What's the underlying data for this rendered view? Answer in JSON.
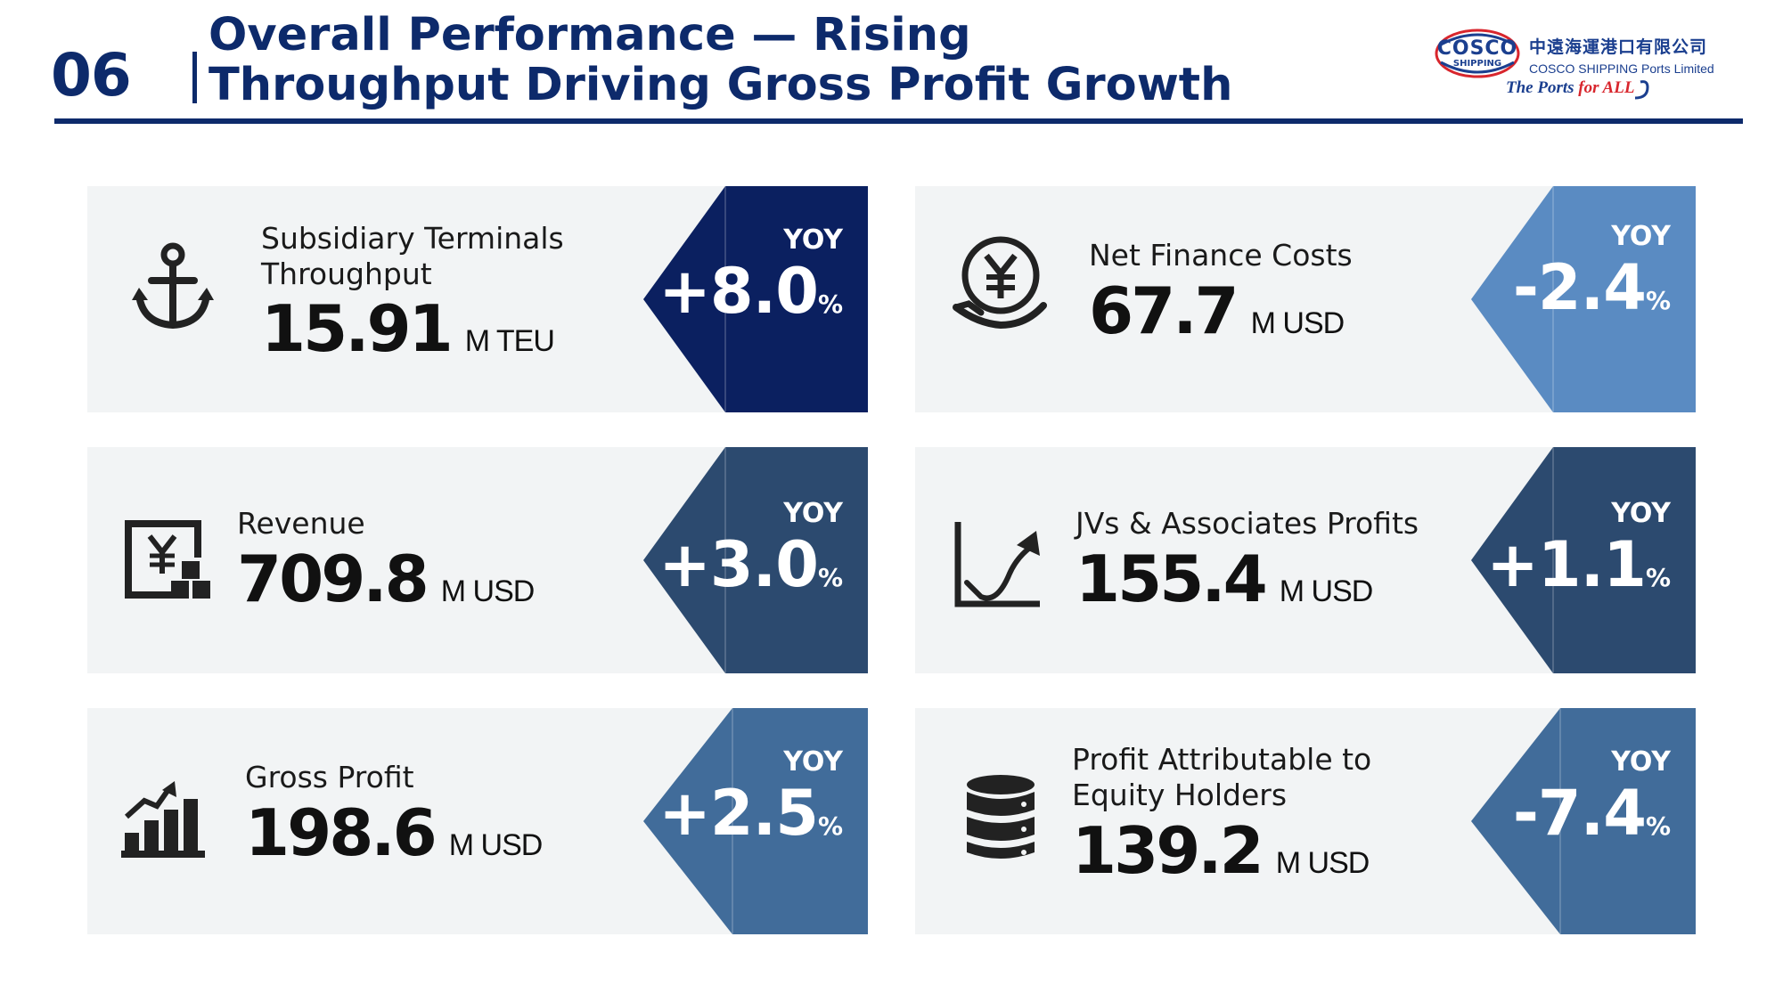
{
  "header": {
    "slide_number": "06",
    "title_line1": "Overall Performance — Rising",
    "title_line2": "Throughput Driving Gross Profit Growth"
  },
  "logo": {
    "mark_text": "COSCO",
    "mark_sub": "SHIPPING",
    "name_cn": "中遠海運港口有限公司",
    "name_en": "COSCO SHIPPING Ports Limited",
    "slogan_prefix": "The Ports ",
    "slogan_suffix": "for ALL"
  },
  "cards": [
    {
      "id": "throughput",
      "label_line1": "Subsidiary Terminals",
      "label_line2": "Throughput",
      "value": "15.91",
      "unit": "M TEU",
      "yoy_label": "YOY",
      "yoy_value": "+8.0",
      "yoy_pct": "%",
      "accent": "#0b2060"
    },
    {
      "id": "net-finance",
      "label_line1": "Net Finance Costs",
      "value": "67.7",
      "unit": "M USD",
      "yoy_label": "YOY",
      "yoy_value": "-2.4",
      "yoy_pct": "%",
      "accent": "#5a8bc2"
    },
    {
      "id": "revenue",
      "label_line1": "Revenue",
      "value": "709.8",
      "unit": "M USD",
      "yoy_label": "YOY",
      "yoy_value": "+3.0",
      "yoy_pct": "%",
      "accent": "#2c4a6f"
    },
    {
      "id": "jv",
      "label_line1": "JVs & Associates Profits",
      "value": "155.4",
      "unit": "M USD",
      "yoy_label": "YOY",
      "yoy_value": "+1.1",
      "yoy_pct": "%",
      "accent": "#2c4a6f"
    },
    {
      "id": "gross",
      "label_line1": "Gross Profit",
      "value": "198.6",
      "unit": "M USD",
      "yoy_label": "YOY",
      "yoy_value": "+2.5",
      "yoy_pct": "%",
      "accent": "#416c9a"
    },
    {
      "id": "equity",
      "label_line1": "Profit Attributable to",
      "label_line2": "Equity Holders",
      "value": "139.2",
      "unit": "M USD",
      "yoy_label": "YOY",
      "yoy_value": "-7.4",
      "yoy_pct": "%",
      "accent": "#416c9a"
    }
  ],
  "colors": {
    "navy": "#0d2a6b",
    "card_bg": "#f2f4f5",
    "logo_red": "#d8262d",
    "logo_blue": "#1b3f8f"
  }
}
